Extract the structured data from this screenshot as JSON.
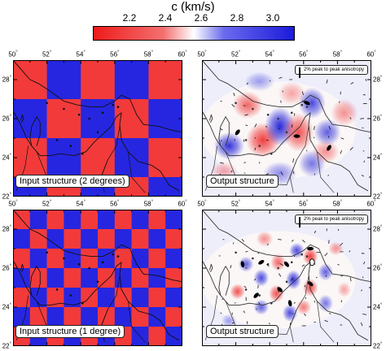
{
  "colorbar": {
    "title": "c (km/s)",
    "ticks": [
      "2.2",
      "2.4",
      "2.6",
      "2.8",
      "3.0"
    ],
    "tick_values": [
      2.2,
      2.4,
      2.6,
      2.8,
      3.0
    ],
    "range": [
      2.05,
      3.15
    ],
    "low_color": "#ee1a1a",
    "mid_color": "#ffffff",
    "high_color": "#1a1adb"
  },
  "axes": {
    "x_ticks": [
      "50",
      "52",
      "54",
      "56",
      "58",
      "60"
    ],
    "y_ticks": [
      "28",
      "26",
      "24",
      "22"
    ]
  },
  "colors": {
    "checker_red": "#f23a3a",
    "checker_blue": "#2626e0",
    "coast": "#111111"
  },
  "panels": {
    "top_left": {
      "label": "Input structure (2 degrees)",
      "checker_size_deg": 2
    },
    "top_right": {
      "label": "Output structure",
      "scale_label": "2% peak to peak anisotropy"
    },
    "bottom_left": {
      "label": "Input structure (1 degree)",
      "checker_size_deg": 1
    },
    "bottom_right": {
      "label": "Output structure",
      "scale_label": "2% peak to peak anisotropy"
    }
  }
}
